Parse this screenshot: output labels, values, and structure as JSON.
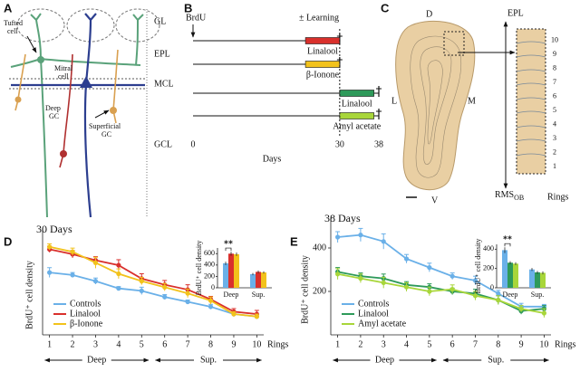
{
  "panels": {
    "A": {
      "label": "A",
      "layers": [
        "GL",
        "EPL",
        "MCL",
        "GCL"
      ],
      "tufted_cell": [
        "Tufted",
        "cell"
      ],
      "mitral_cell": [
        "Mitral",
        "cell"
      ],
      "deep_gc": [
        "Deep",
        "GC"
      ],
      "superficial_gc": [
        "Superficial",
        "GC"
      ]
    },
    "B": {
      "label": "B",
      "brdu": "BrdU",
      "learning": "± Learning",
      "days_label": "Days",
      "xlim": [
        0,
        38
      ],
      "xticks": [
        0,
        30,
        38
      ],
      "rows": [
        {
          "name": "Linalool",
          "color": "#d9302c",
          "start": 23,
          "end": 30,
          "stop": 30
        },
        {
          "name": "β-Ionone",
          "color": "#f2c21b",
          "start": 23,
          "end": 30,
          "stop": 30
        },
        {
          "name": "Linalool",
          "color": "#2e9a5a",
          "start": 30,
          "end": 37,
          "stop": 38
        },
        {
          "name": "Amyl acetate",
          "color": "#a8d63a",
          "start": 30,
          "end": 37,
          "stop": 38
        }
      ]
    },
    "C": {
      "label": "C",
      "dorsal": "D",
      "ventral": "V",
      "lateral": "L",
      "medial": "M",
      "top": "EPL",
      "bottom": "RMS",
      "bottom_sub": "OB",
      "rings_label": "Rings",
      "rings": [
        1,
        2,
        3,
        4,
        5,
        6,
        7,
        8,
        9,
        10
      ]
    },
    "D": {
      "label": "D",
      "type": "line",
      "title": "30 Days",
      "ylabel": "BrdU⁺ cell density",
      "xlabel": "Rings",
      "x": [
        1,
        2,
        3,
        4,
        5,
        6,
        7,
        8,
        9,
        10
      ],
      "xlim": [
        0.7,
        10.3
      ],
      "ylim": [
        0,
        800
      ],
      "regions": [
        {
          "name": "Deep",
          "from": 0.8,
          "to": 5.3
        },
        {
          "name": "Sup.",
          "from": 5.6,
          "to": 10.2
        }
      ],
      "series": [
        {
          "name": "Controls",
          "color": "#6ab0e8",
          "values": [
            510,
            490,
            440,
            380,
            360,
            310,
            270,
            230,
            170,
            150
          ],
          "errors": [
            40,
            20,
            25,
            15,
            30,
            20,
            15,
            20,
            20,
            15
          ]
        },
        {
          "name": "Linalool",
          "color": "#d9302c",
          "values": [
            700,
            660,
            610,
            570,
            460,
            410,
            370,
            290,
            190,
            170
          ],
          "errors": [
            25,
            30,
            30,
            45,
            40,
            35,
            40,
            25,
            25,
            30
          ]
        },
        {
          "name": "β-Ionone",
          "color": "#f2c21b",
          "values": [
            720,
            680,
            590,
            500,
            440,
            390,
            340,
            280,
            170,
            150
          ],
          "errors": [
            25,
            30,
            45,
            40,
            30,
            30,
            35,
            30,
            20,
            20
          ]
        }
      ],
      "inset": {
        "type": "bar",
        "ylabel": "BrdU⁺ cell density",
        "categories": [
          "Deep",
          "Sup."
        ],
        "ylim": [
          0,
          700
        ],
        "yticks": [
          0,
          200,
          400,
          600
        ],
        "annotation": "**",
        "series": [
          {
            "color": "#6ab0e8",
            "values": [
              430,
              240
            ],
            "errors": [
              30,
              20
            ]
          },
          {
            "color": "#d9302c",
            "values": [
              600,
              280
            ],
            "errors": [
              35,
              25
            ]
          },
          {
            "color": "#f2c21b",
            "values": [
              590,
              270
            ],
            "errors": [
              30,
              20
            ]
          }
        ]
      }
    },
    "E": {
      "label": "E",
      "type": "line",
      "title": "38 Days",
      "ylabel": "BrdU⁺ cell density",
      "xlabel": "Rings",
      "x": [
        1,
        2,
        3,
        4,
        5,
        6,
        7,
        8,
        9,
        10
      ],
      "xlim": [
        0.7,
        10.3
      ],
      "ylim": [
        0,
        500
      ],
      "yticks": [
        200,
        400
      ],
      "regions": [
        {
          "name": "Deep",
          "from": 0.8,
          "to": 5.3
        },
        {
          "name": "Sup.",
          "from": 5.6,
          "to": 10.2
        }
      ],
      "series": [
        {
          "name": "Controls",
          "color": "#6ab0e8",
          "values": [
            450,
            460,
            430,
            350,
            310,
            270,
            250,
            190,
            130,
            130
          ],
          "errors": [
            25,
            30,
            35,
            20,
            20,
            15,
            20,
            15,
            15,
            10
          ]
        },
        {
          "name": "Linalool",
          "color": "#2e9a5a",
          "values": [
            290,
            270,
            260,
            230,
            220,
            200,
            190,
            160,
            110,
            120
          ],
          "errors": [
            20,
            15,
            20,
            15,
            15,
            15,
            20,
            20,
            15,
            15
          ]
        },
        {
          "name": "Amyl acetate",
          "color": "#a8d63a",
          "values": [
            280,
            260,
            240,
            220,
            200,
            210,
            180,
            160,
            120,
            100
          ],
          "errors": [
            25,
            20,
            25,
            20,
            20,
            20,
            20,
            20,
            15,
            20
          ]
        }
      ],
      "inset": {
        "type": "bar",
        "ylabel": "BrdU⁺ cell density",
        "categories": [
          "Deep",
          "Sup."
        ],
        "ylim": [
          0,
          450
        ],
        "yticks": [
          0,
          200,
          400
        ],
        "annotation": "**",
        "series": [
          {
            "color": "#6ab0e8",
            "values": [
              390,
              190
            ],
            "errors": [
              30,
              15
            ]
          },
          {
            "color": "#2e9a5a",
            "values": [
              260,
              160
            ],
            "errors": [
              15,
              15
            ]
          },
          {
            "color": "#a8d63a",
            "values": [
              250,
              155
            ],
            "errors": [
              15,
              15
            ]
          }
        ]
      }
    }
  }
}
